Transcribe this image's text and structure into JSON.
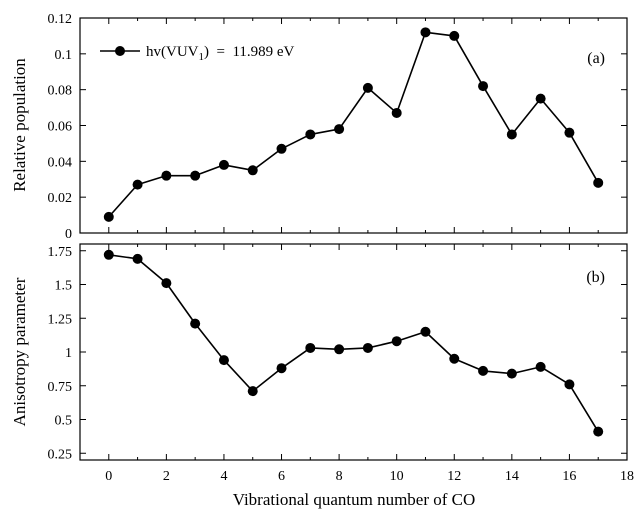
{
  "chart_data": [
    {
      "type": "line",
      "panel_label": "(a)",
      "xlabel": "",
      "ylabel": "Relative population",
      "xlim": [
        -1,
        18
      ],
      "ylim": [
        0,
        0.12
      ],
      "x_ticks": [
        "0",
        "2",
        "4",
        "6",
        "8",
        "10",
        "12",
        "14",
        "16",
        "18"
      ],
      "x_tick_values": [
        0,
        2,
        4,
        6,
        8,
        10,
        12,
        14,
        16,
        18
      ],
      "y_ticks": [
        "0",
        "0.02",
        "0.04",
        "0.06",
        "0.08",
        "0.1",
        "0.12"
      ],
      "y_tick_values": [
        0,
        0.02,
        0.04,
        0.06,
        0.08,
        0.1,
        0.12
      ],
      "grid": false,
      "legend": {
        "placement": "top-left",
        "entries": [
          {
            "main": "hv(VUV",
            "sub": "1",
            "rest": ")  =  11.989 eV"
          }
        ]
      },
      "series": [
        {
          "x": [
            0,
            1,
            2,
            3,
            4,
            5,
            6,
            7,
            8,
            9,
            10,
            11,
            12,
            13,
            14,
            15,
            16,
            17
          ],
          "values": [
            0.009,
            0.027,
            0.032,
            0.032,
            0.038,
            0.035,
            0.047,
            0.055,
            0.058,
            0.081,
            0.067,
            0.112,
            0.11,
            0.082,
            0.055,
            0.075,
            0.056,
            0.028
          ],
          "color": "#000000"
        }
      ]
    },
    {
      "type": "line",
      "panel_label": "(b)",
      "xlabel": "Vibrational quantum number of CO",
      "ylabel": "Anisotropy parameter",
      "xlim": [
        -1,
        18
      ],
      "ylim": [
        0.2,
        1.8
      ],
      "x_ticks": [
        "0",
        "2",
        "4",
        "6",
        "8",
        "10",
        "12",
        "14",
        "16",
        "18"
      ],
      "x_tick_values": [
        0,
        2,
        4,
        6,
        8,
        10,
        12,
        14,
        16,
        18
      ],
      "y_ticks": [
        "0.25",
        "0.5",
        "0.75",
        "1",
        "1.25",
        "1.5",
        "1.75"
      ],
      "y_tick_values": [
        0.25,
        0.5,
        0.75,
        1.0,
        1.25,
        1.5,
        1.75
      ],
      "grid": false,
      "series": [
        {
          "x": [
            0,
            1,
            2,
            3,
            4,
            5,
            6,
            7,
            8,
            9,
            10,
            11,
            12,
            13,
            14,
            15,
            16,
            17
          ],
          "values": [
            1.72,
            1.69,
            1.51,
            1.21,
            0.94,
            0.71,
            0.88,
            1.03,
            1.02,
            1.03,
            1.08,
            1.15,
            0.95,
            0.86,
            0.84,
            0.89,
            0.76,
            0.41
          ],
          "color": "#000000"
        }
      ]
    }
  ]
}
